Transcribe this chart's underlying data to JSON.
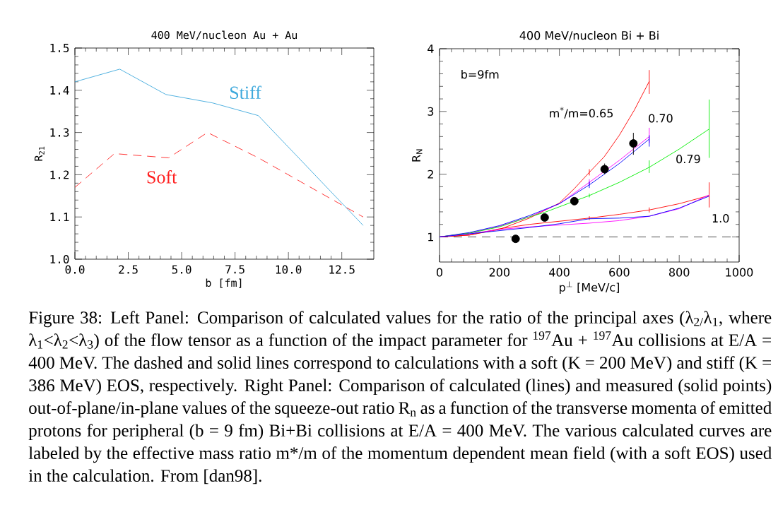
{
  "chart_data": [
    {
      "type": "line",
      "title": "400 MeV/nucleon Au + Au",
      "xlabel": "b [fm]",
      "ylabel": "R$_{21}$",
      "xlim": [
        0,
        14
      ],
      "ylim": [
        1.0,
        1.5
      ],
      "xticks": [
        {
          "value": 0,
          "label": "0.0"
        },
        {
          "value": 2.5,
          "label": "2.5"
        },
        {
          "value": 5,
          "label": "5.0"
        },
        {
          "value": 7.5,
          "label": "7.5"
        },
        {
          "value": 10,
          "label": "10.0"
        },
        {
          "value": 12.5,
          "label": "12.5"
        }
      ],
      "yticks": [
        {
          "value": 1.0,
          "label": "1.0"
        },
        {
          "value": 1.1,
          "label": "1.1"
        },
        {
          "value": 1.2,
          "label": "1.2"
        },
        {
          "value": 1.3,
          "label": "1.3"
        },
        {
          "value": 1.4,
          "label": "1.4"
        },
        {
          "value": 1.5,
          "label": "1.5"
        }
      ],
      "series": [
        {
          "name": "Stiff",
          "color": "#3fa9dc",
          "line_style": "solid",
          "x": [
            0,
            2.1,
            4.26,
            6.45,
            8.59,
            13.5
          ],
          "values": [
            1.42,
            1.45,
            1.39,
            1.37,
            1.34,
            1.08
          ]
        },
        {
          "name": "Soft",
          "color": "#ff2020",
          "line_style": "dashed",
          "x": [
            0,
            1.85,
            4.39,
            6.21,
            8.59,
            13.5
          ],
          "values": [
            1.17,
            1.25,
            1.24,
            1.3,
            1.24,
            1.1
          ]
        }
      ]
    },
    {
      "type": "line",
      "title": "400 MeV/nucleon Bi + Bi",
      "xlabel": "p$^{⊥}$ [MeV/c]",
      "ylabel": "R$_{N}$",
      "xlim": [
        0,
        1000
      ],
      "ylim": [
        0.6,
        4
      ],
      "xticks": [
        0,
        200,
        400,
        600,
        800,
        1000
      ],
      "yticks": [
        1,
        2,
        3,
        4
      ],
      "annotations": [
        "b=9fm"
      ],
      "ref_lines": [
        {
          "axis": "y",
          "value": 1,
          "color": "#000000",
          "line_style": "dashed"
        }
      ],
      "series": [
        {
          "name": "m$^{*}$/m=0.65",
          "color": "#ff0000",
          "line_style": "solid",
          "x": [
            0,
            100,
            200,
            300,
            400,
            450,
            500,
            550,
            600,
            650,
            700
          ],
          "values": [
            1.0,
            1.03,
            1.12,
            1.3,
            1.54,
            1.77,
            2.03,
            2.28,
            2.62,
            3.02,
            3.48
          ],
          "errors": [
            null,
            null,
            null,
            null,
            null,
            null,
            [
              1.98,
              2.08
            ],
            null,
            null,
            null,
            [
              3.28,
              3.66
            ]
          ]
        },
        {
          "name": "0.70",
          "color": "#ff00ff",
          "line_style": "solid",
          "x": [
            0,
            100,
            200,
            300,
            400,
            500,
            600,
            700
          ],
          "values": [
            1.0,
            1.06,
            1.17,
            1.32,
            1.53,
            1.87,
            2.22,
            2.6
          ],
          "errors": [
            null,
            null,
            null,
            null,
            null,
            [
              1.82,
              1.92
            ],
            null,
            [
              2.5,
              2.74
            ]
          ]
        },
        {
          "color": "#0000ff",
          "line_style": "solid",
          "x": [
            0,
            100,
            200,
            300,
            400,
            500,
            600,
            700
          ],
          "values": [
            1.0,
            1.07,
            1.18,
            1.34,
            1.53,
            1.83,
            2.17,
            2.56
          ],
          "errors": [
            null,
            null,
            null,
            null,
            null,
            [
              1.78,
              1.88
            ],
            null,
            [
              2.44,
              2.62
            ]
          ]
        },
        {
          "name": "0.79",
          "color": "#00ee00",
          "line_style": "solid",
          "x": [
            0,
            100,
            200,
            300,
            350,
            400,
            500,
            600,
            700,
            800,
            900
          ],
          "values": [
            1.0,
            1.06,
            1.16,
            1.32,
            1.39,
            1.48,
            1.66,
            1.87,
            2.11,
            2.4,
            2.72
          ],
          "errors": [
            null,
            null,
            null,
            null,
            null,
            null,
            [
              1.63,
              1.69
            ],
            null,
            [
              2.02,
              2.22
            ],
            null,
            [
              2.26,
              3.19
            ]
          ]
        },
        {
          "name": "1.0",
          "color": "#ff0000",
          "line_style": "solid",
          "x": [
            0,
            100,
            200,
            300,
            400,
            500,
            600,
            700,
            800,
            900
          ],
          "values": [
            1.0,
            1.03,
            1.13,
            1.2,
            1.25,
            1.3,
            1.36,
            1.43,
            1.53,
            1.66
          ],
          "errors": [
            null,
            null,
            null,
            null,
            null,
            [
              1.27,
              1.33
            ],
            null,
            [
              1.39,
              1.47
            ],
            null,
            [
              1.47,
              1.87
            ]
          ]
        },
        {
          "color": "#ff00ff",
          "line_style": "solid",
          "x": [
            0,
            100,
            200,
            300,
            400,
            500,
            600,
            700,
            800,
            900
          ],
          "values": [
            1.0,
            1.05,
            1.12,
            1.16,
            1.19,
            1.22,
            1.26,
            1.33,
            1.45,
            1.67
          ]
        },
        {
          "color": "#0000ff",
          "line_style": "solid",
          "x": [
            0,
            100,
            200,
            300,
            400,
            500,
            600,
            700,
            800,
            900
          ],
          "values": [
            1.0,
            1.05,
            1.1,
            1.15,
            1.21,
            1.29,
            1.3,
            1.33,
            1.46,
            1.65
          ]
        },
        {
          "type": "scatter",
          "color": "#000000",
          "marker": "circle",
          "x": [
            254,
            351,
            450,
            551,
            647
          ],
          "values": [
            0.97,
            1.31,
            1.57,
            2.08,
            2.49
          ],
          "errors": [
            null,
            null,
            null,
            [
              2.0,
              2.17
            ],
            [
              2.31,
              2.66
            ]
          ]
        }
      ]
    },
    {
      "type": "other",
      "annotations": [
        "Figure 38: Left Panel: Comparison of calculated values for the ratio of the principal axes (λ$_{2/}$λ$_{1}$, where λ$_{1}$<λ$_{2}$<λ$_{3}$) of the flow tensor as a function of the impact parameter for $^{197}$Au + $^{197}$Au collisions at E/A = 400 MeV. The dashed and solid lines correspond to calculations with a soft (K = 200 MeV) and stiff (K = 386 MeV) EOS, respectively. Right Panel: Comparison of calculated (lines) and measured (solid points) out-of-plane/in-plane values of the squeeze-out ratio R$_{n}$ as a function of the transverse momenta of emitted protons for peripheral (b = 9 fm) Bi+Bi collisions at E/A = 400 MeV. The various calculated curves are labeled by the effective mass ratio m*/m of the momentum dependent mean field (with a soft EOS) used in the calculation. From [dan98]."
      ]
    }
  ]
}
